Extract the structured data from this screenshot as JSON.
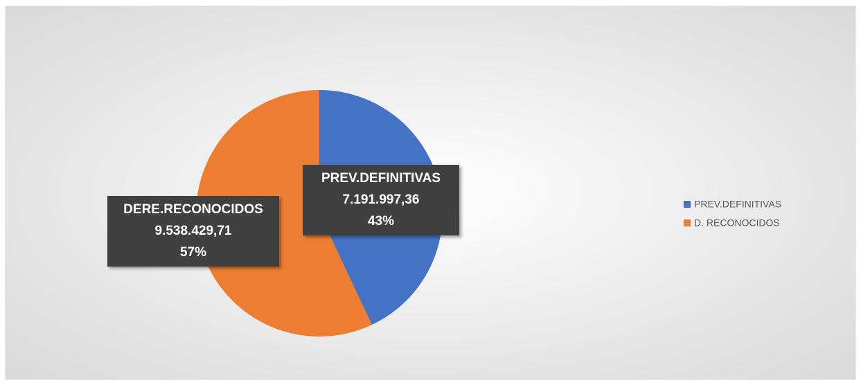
{
  "chart_data": {
    "type": "pie",
    "categories": [
      "PREV.DEFINITIVAS",
      "D. RECONOCIDOS"
    ],
    "label_names": [
      "PREV.DEFINITIVAS",
      "DERE.RECONOCIDOS"
    ],
    "values": [
      7191997.36,
      9538429.71
    ],
    "value_labels": [
      "7.191.997,36",
      "9.538.429,71"
    ],
    "percent_labels": [
      "43%",
      "57%"
    ],
    "colors": [
      "#4472c4",
      "#ed7d31"
    ]
  }
}
